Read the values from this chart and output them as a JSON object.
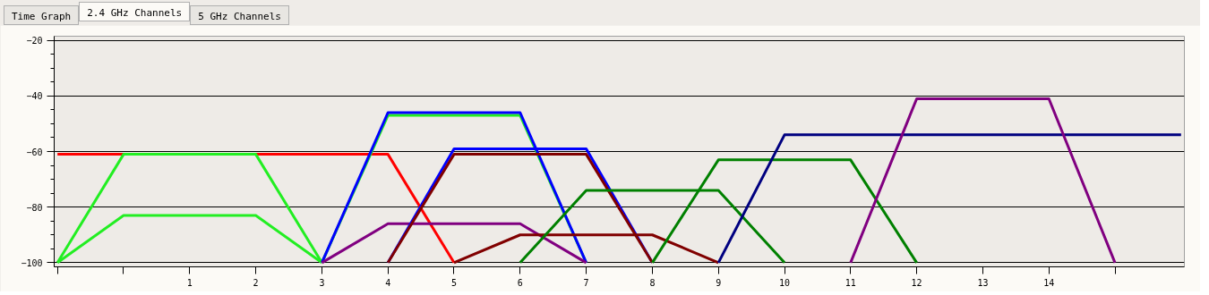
{
  "chart_data": {
    "type": "line",
    "annotations": [
      "Time Graph",
      "2.4 GHz Channels",
      "5 GHz Channels"
    ],
    "xlim": [
      -1.05,
      16.05
    ],
    "ylim": [
      -101.5,
      -18.5
    ],
    "xticks": [
      {
        "value": -1,
        "label": null
      },
      {
        "value": 0,
        "label": null
      },
      1,
      2,
      3,
      4,
      5,
      6,
      7,
      8,
      9,
      10,
      11,
      12,
      13,
      14,
      {
        "value": 15,
        "label": null
      }
    ],
    "yticks": [
      -20,
      -40,
      -60,
      -80,
      -100
    ],
    "grid": "y",
    "marker": "none",
    "line_style": "solid",
    "series": [
      {
        "color": "#ff0000",
        "x": [
          -1,
          4,
          5
        ],
        "values": [
          -61,
          -61,
          -100
        ]
      },
      {
        "color": "#22ee22",
        "x": [
          -1,
          0,
          2,
          3
        ],
        "values": [
          -100,
          -61,
          -61,
          -100
        ]
      },
      {
        "color": "#22ee22",
        "x": [
          -1,
          0,
          2,
          3
        ],
        "values": [
          -100,
          -83,
          -83,
          -100
        ]
      },
      {
        "color": "#22ee22",
        "x": [
          3,
          4,
          6,
          7
        ],
        "values": [
          -100,
          -47,
          -47,
          -100
        ]
      },
      {
        "color": "#0000ff",
        "x": [
          3,
          4,
          6,
          7
        ],
        "values": [
          -100,
          -46,
          -46,
          -100
        ]
      },
      {
        "color": "#800080",
        "x": [
          3,
          4,
          6,
          7
        ],
        "values": [
          -100,
          -86,
          -86,
          -100
        ]
      },
      {
        "color": "#0000ff",
        "x": [
          4,
          5,
          7,
          8
        ],
        "values": [
          -100,
          -59,
          -59,
          -100
        ]
      },
      {
        "color": "#800000",
        "x": [
          4,
          5,
          7,
          8
        ],
        "values": [
          -100,
          -61,
          -61,
          -100
        ]
      },
      {
        "color": "#800000",
        "x": [
          5,
          6,
          8,
          9
        ],
        "values": [
          -100,
          -90,
          -90,
          -100
        ]
      },
      {
        "color": "#008000",
        "x": [
          6,
          7,
          9,
          10
        ],
        "values": [
          -100,
          -74,
          -74,
          -100
        ]
      },
      {
        "color": "#008000",
        "x": [
          8,
          9,
          11,
          12
        ],
        "values": [
          -100,
          -63,
          -63,
          -100
        ]
      },
      {
        "color": "#000080",
        "x": [
          9,
          10,
          16
        ],
        "values": [
          -100,
          -54,
          -54
        ]
      },
      {
        "color": "#800080",
        "x": [
          11,
          12,
          14,
          15
        ],
        "values": [
          -100,
          -41,
          -41,
          -100
        ]
      }
    ]
  }
}
